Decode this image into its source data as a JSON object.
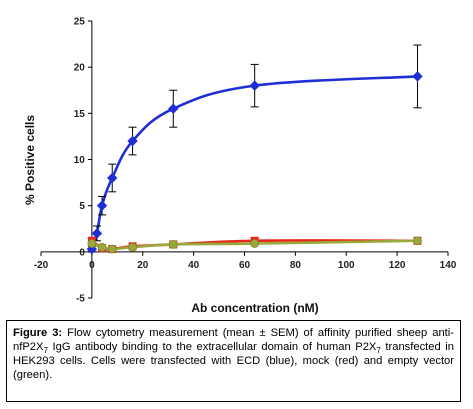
{
  "chart_data": {
    "type": "line",
    "xlabel": "Ab concentration (nM)",
    "ylabel": "% Positive cells",
    "xlim": [
      -20,
      140
    ],
    "ylim": [
      -5,
      25
    ],
    "x_ticks": [
      -20,
      0,
      20,
      40,
      60,
      80,
      100,
      120,
      140
    ],
    "y_ticks": [
      -5,
      0,
      5,
      10,
      15,
      20,
      25
    ],
    "grid": false,
    "legend": "none",
    "series": [
      {
        "color": "#1f2fd6",
        "marker": "diamond",
        "x": [
          0,
          2,
          4,
          8,
          16,
          32,
          64,
          128
        ],
        "y": [
          0.3,
          2.0,
          5.0,
          8.0,
          12.0,
          15.5,
          18.0,
          19.0
        ],
        "error": [
          0.3,
          0.8,
          1.0,
          1.5,
          1.5,
          2.0,
          2.3,
          3.4
        ]
      },
      {
        "color": "#e8261b",
        "marker": "square",
        "x": [
          0,
          4,
          8,
          16,
          32,
          64,
          128
        ],
        "y": [
          1.2,
          0.4,
          0.3,
          0.6,
          0.8,
          1.2,
          1.2
        ],
        "error": [
          0,
          0,
          0,
          0,
          0,
          0,
          0
        ]
      },
      {
        "color": "#9aa83a",
        "marker": "circle",
        "x": [
          0,
          4,
          8,
          16,
          32,
          64,
          128
        ],
        "y": [
          0.9,
          0.5,
          0.3,
          0.5,
          0.8,
          0.9,
          1.2
        ],
        "error": [
          0,
          0,
          0,
          0,
          0,
          0,
          0
        ]
      }
    ]
  },
  "caption": {
    "label": "Figure 3:",
    "text_1": " Flow cytometry measurement (mean ± SEM) of affinity purified sheep anti-nfP2X",
    "sub_1": "7",
    "text_2": " IgG antibody binding to the extracellular domain of human P2X",
    "sub_2": "7",
    "text_3": " transfected in HEK293 cells. Cells were transfected with ECD (blue), mock (red) and empty vector (green)."
  }
}
